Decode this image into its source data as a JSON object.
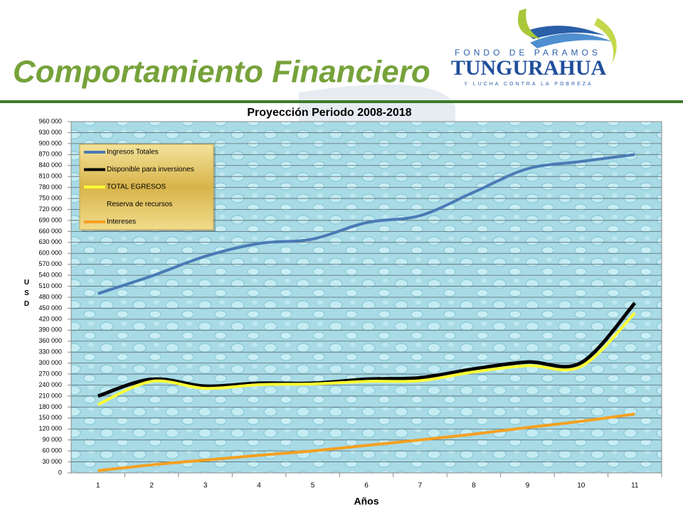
{
  "slide_title": "Comportamiento Financiero",
  "logo": {
    "top": "FONDO DE PARAMOS",
    "name": "TUNGURAHUA",
    "tagline": "Y LUCHA CONTRA LA POBREZA"
  },
  "chart_data": {
    "type": "line",
    "smooth": true,
    "title": "Proyección Periodo 2008-2018",
    "x_label": "Años",
    "y_label": "USD",
    "categories": [
      "1",
      "2",
      "3",
      "4",
      "5",
      "6",
      "7",
      "8",
      "9",
      "10",
      "11"
    ],
    "series": [
      {
        "name": "Ingresos Totales",
        "color": "#4a7ab5",
        "values": [
          490000,
          538000,
          592000,
          627000,
          639000,
          684000,
          703000,
          767000,
          831000,
          851000,
          870000
        ]
      },
      {
        "name": "Disponible para inversiones",
        "color": "#000000",
        "values": [
          210000,
          256000,
          237000,
          245000,
          245000,
          256000,
          260000,
          284000,
          303000,
          301000,
          464000
        ]
      },
      {
        "name": "TOTAL EGRESOS",
        "color": "#ffff33",
        "values": [
          187000,
          250000,
          231000,
          241000,
          243000,
          250000,
          252000,
          276000,
          293000,
          291000,
          437000
        ]
      },
      {
        "name": "Reserva de recursos",
        "color": "none",
        "values": [
          null,
          null,
          null,
          null,
          null,
          null,
          null,
          null,
          null,
          null,
          null
        ]
      },
      {
        "name": "Intereses",
        "color": "#f5a020",
        "values": [
          6000,
          22000,
          35000,
          48000,
          60000,
          75000,
          90000,
          106000,
          124000,
          141000,
          161000
        ]
      }
    ],
    "ylim": [
      0,
      960000
    ],
    "yticks": [
      0,
      {
        "value": 30000,
        "label": "30 000"
      },
      {
        "value": 60000,
        "label": "60 000"
      },
      {
        "value": 90000,
        "label": "90 000"
      },
      {
        "value": 120000,
        "label": "120 000"
      },
      {
        "value": 150000,
        "label": "150 000"
      },
      {
        "value": 180000,
        "label": "180 000"
      },
      {
        "value": 210000,
        "label": "210 000"
      },
      {
        "value": 240000,
        "label": "240 000"
      },
      {
        "value": 270000,
        "label": "270 000"
      },
      {
        "value": 300000,
        "label": "300 000"
      },
      {
        "value": 330000,
        "label": "330 000"
      },
      {
        "value": 360000,
        "label": "360 000"
      },
      {
        "value": 390000,
        "label": "390 000"
      },
      {
        "value": 420000,
        "label": "420 000"
      },
      {
        "value": 450000,
        "label": "450 000"
      },
      {
        "value": 480000,
        "label": "480 000"
      },
      {
        "value": 510000,
        "label": "510 000"
      },
      {
        "value": 540000,
        "label": "540 000"
      },
      {
        "value": 570000,
        "label": "570 000"
      },
      {
        "value": 600000,
        "label": "600 000"
      },
      {
        "value": 630000,
        "label": "630 000"
      },
      {
        "value": 660000,
        "label": "660 000"
      },
      {
        "value": 690000,
        "label": "690 000"
      },
      {
        "value": 720000,
        "label": "720 000"
      },
      {
        "value": 750000,
        "label": "750 000"
      },
      {
        "value": 780000,
        "label": "780 000"
      },
      {
        "value": 810000,
        "label": "810 000"
      },
      {
        "value": 840000,
        "label": "840 000"
      },
      {
        "value": 870000,
        "label": "870 000"
      },
      {
        "value": 900000,
        "label": "900 000"
      },
      {
        "value": 930000,
        "label": "930 000"
      },
      {
        "value": 960000,
        "label": "960 000"
      }
    ],
    "grid": true,
    "legend": "upper left"
  }
}
